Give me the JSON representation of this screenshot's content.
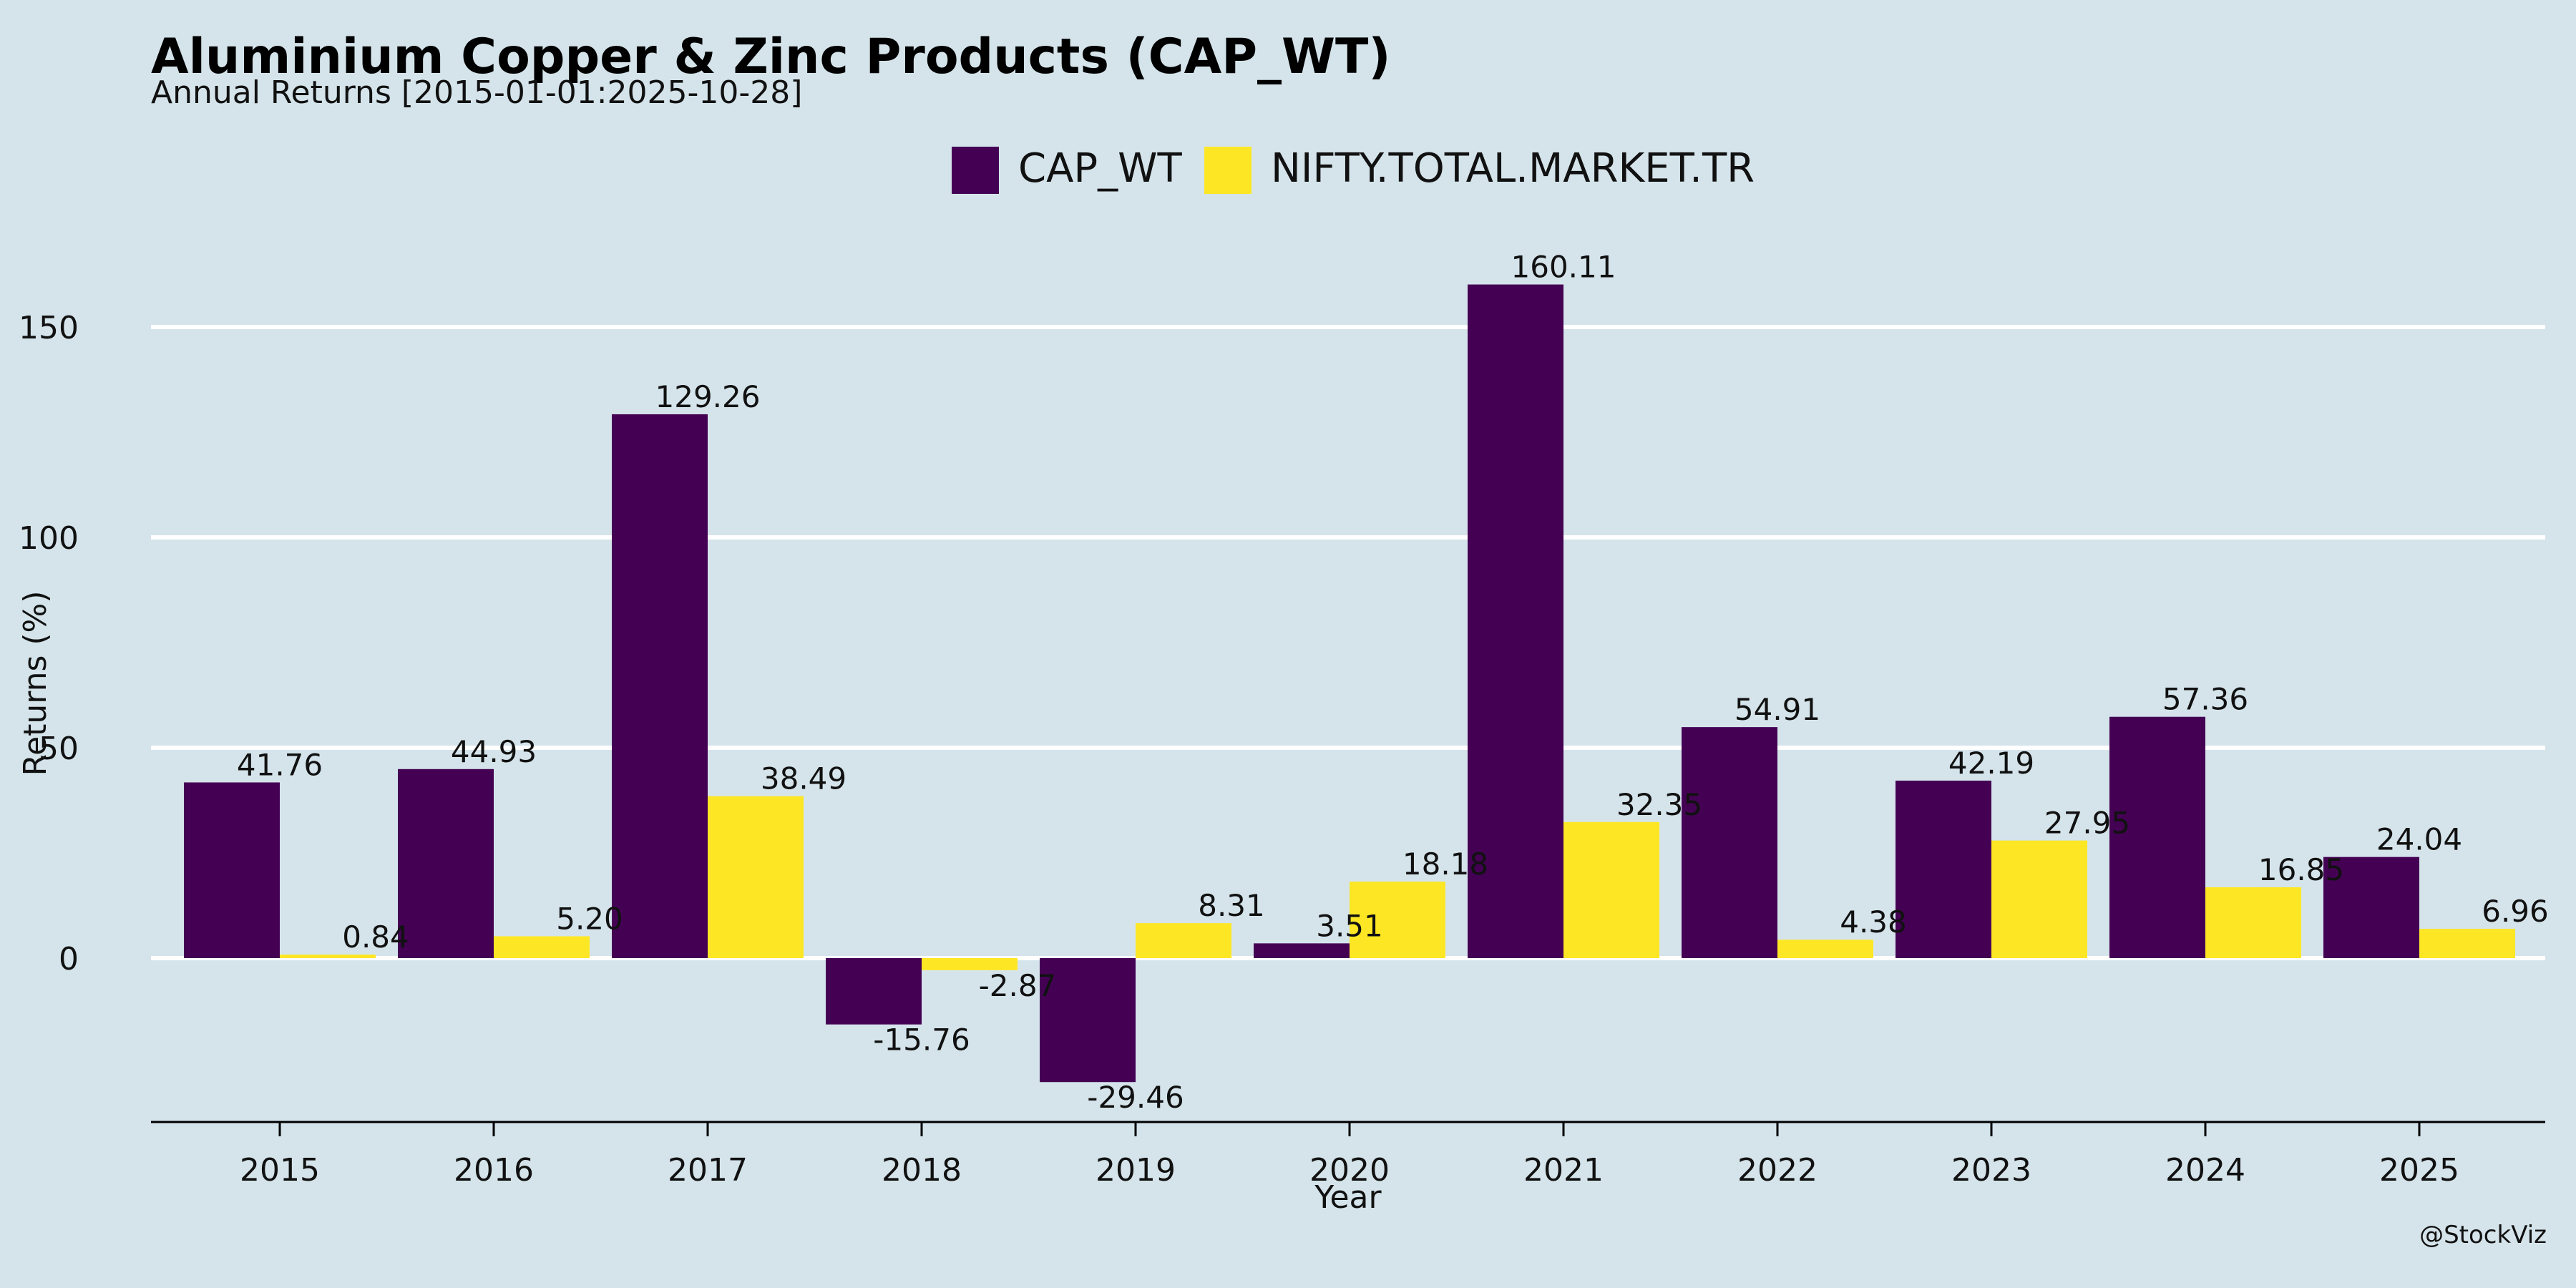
{
  "header": {
    "title": "Aluminium Copper & Zinc Products (CAP_WT)",
    "subtitle": "Annual Returns [2015-01-01:2025-10-28]"
  },
  "watermark": "@StockViz",
  "colors": {
    "background": "#d5e4eb",
    "series_1": "#440154",
    "series_2": "#fde725",
    "grid": "#ffffff",
    "axis": "#000000"
  },
  "chart_data": {
    "type": "bar",
    "title": "Aluminium Copper & Zinc Products (CAP_WT)",
    "subtitle": "Annual Returns [2015-01-01:2025-10-28]",
    "xlabel": "Year",
    "ylabel": "Returns (%)",
    "categories": [
      "2015",
      "2016",
      "2017",
      "2018",
      "2019",
      "2020",
      "2021",
      "2022",
      "2023",
      "2024",
      "2025"
    ],
    "series": [
      {
        "name": "CAP_WT",
        "color": "#440154",
        "values": [
          41.76,
          44.93,
          129.26,
          -15.76,
          -29.46,
          3.51,
          160.11,
          54.91,
          42.19,
          57.36,
          24.04
        ]
      },
      {
        "name": "NIFTY.TOTAL.MARKET.TR",
        "color": "#fde725",
        "values": [
          0.84,
          5.2,
          38.49,
          -2.87,
          8.31,
          18.18,
          32.35,
          4.38,
          27.95,
          16.85,
          6.96
        ]
      }
    ],
    "data_labels": [
      [
        "41.76",
        "44.93",
        "129.26",
        "-15.76",
        "-29.46",
        "3.51",
        "160.11",
        "54.91",
        "42.19",
        "57.36",
        "24.04"
      ],
      [
        "0.84",
        "5.20",
        "38.49",
        "-2.87",
        "8.31",
        "18.18",
        "32.35",
        "4.38",
        "27.95",
        "16.85",
        "6.96"
      ]
    ],
    "yticks": [
      0,
      50,
      100,
      150
    ],
    "ytick_labels": [
      "0",
      "50",
      "100",
      "150"
    ],
    "ylim": [
      -39,
      170
    ],
    "grid": true,
    "legend_position": "top-center"
  }
}
